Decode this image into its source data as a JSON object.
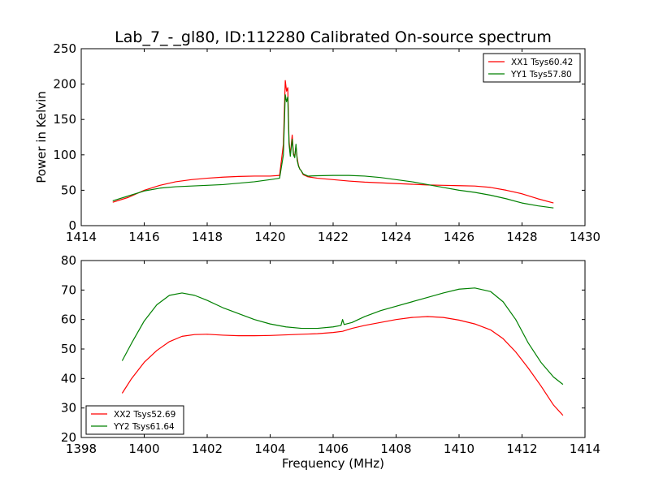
{
  "title": "Lab_7_-_gl80, ID:112280 Calibrated On-source spectrum",
  "chart_data": [
    {
      "type": "line",
      "ylabel": "Power in Kelvin",
      "xlabel": "",
      "xlim": [
        1414,
        1430
      ],
      "ylim": [
        0,
        250
      ],
      "xticks": [
        1414,
        1416,
        1418,
        1420,
        1422,
        1424,
        1426,
        1428,
        1430
      ],
      "yticks": [
        0,
        50,
        100,
        150,
        200,
        250
      ],
      "grid": false,
      "legend_position": "top-right",
      "series": [
        {
          "name": "XX1 Tsys60.42",
          "color": "#ff0000",
          "x": [
            1415,
            1415.5,
            1416,
            1416.5,
            1417,
            1417.5,
            1418,
            1418.5,
            1419,
            1419.5,
            1420,
            1420.3,
            1420.42,
            1420.48,
            1420.52,
            1420.56,
            1420.6,
            1420.64,
            1420.7,
            1420.74,
            1420.78,
            1420.82,
            1420.86,
            1420.9,
            1420.94,
            1420.98,
            1421.05,
            1421.2,
            1421.5,
            1422,
            1422.5,
            1423,
            1423.5,
            1424,
            1424.5,
            1425,
            1425.5,
            1426,
            1426.5,
            1427,
            1427.5,
            1428,
            1428.5,
            1429
          ],
          "y": [
            33,
            40,
            50,
            57,
            62,
            65,
            67,
            68.5,
            69.5,
            70,
            70,
            71,
            115,
            205,
            190,
            195,
            120,
            100,
            128,
            102,
            98,
            112,
            95,
            85,
            80,
            78,
            72,
            69,
            67,
            65,
            63,
            61.5,
            60.5,
            59.5,
            58.5,
            57.5,
            57,
            56.5,
            56,
            54,
            50,
            45,
            38,
            32
          ]
        },
        {
          "name": "YY1 Tsys57.80",
          "color": "#008000",
          "x": [
            1415,
            1415.5,
            1416,
            1416.5,
            1417,
            1417.5,
            1418,
            1418.5,
            1419,
            1419.5,
            1420,
            1420.3,
            1420.42,
            1420.48,
            1420.52,
            1420.56,
            1420.6,
            1420.64,
            1420.7,
            1420.74,
            1420.78,
            1420.82,
            1420.86,
            1420.9,
            1420.94,
            1420.98,
            1421.05,
            1421.2,
            1421.5,
            1422,
            1422.5,
            1423,
            1423.5,
            1424,
            1424.5,
            1425,
            1425.5,
            1426,
            1426.5,
            1427,
            1427.5,
            1428,
            1428.5,
            1429
          ],
          "y": [
            35,
            42,
            49,
            53,
            55,
            56,
            57,
            58,
            60,
            62,
            65,
            67,
            100,
            185,
            175,
            182,
            115,
            98,
            122,
            100,
            96,
            115,
            92,
            84,
            80,
            78,
            73,
            70,
            70.5,
            71,
            71,
            70,
            68,
            65,
            62,
            58,
            54,
            50,
            47,
            43,
            38,
            32,
            28,
            25
          ]
        }
      ]
    },
    {
      "type": "line",
      "ylabel": "",
      "xlabel": "Frequency (MHz)",
      "xlim": [
        1398,
        1414
      ],
      "ylim": [
        20,
        80
      ],
      "xticks": [
        1398,
        1400,
        1402,
        1404,
        1406,
        1408,
        1410,
        1412,
        1414
      ],
      "yticks": [
        20,
        30,
        40,
        50,
        60,
        70,
        80
      ],
      "grid": false,
      "legend_position": "bottom-left",
      "series": [
        {
          "name": "XX2 Tsys52.69",
          "color": "#ff0000",
          "x": [
            1399.3,
            1399.6,
            1400,
            1400.4,
            1400.8,
            1401.2,
            1401.6,
            1402,
            1402.5,
            1403,
            1403.5,
            1404,
            1404.5,
            1405,
            1405.5,
            1406,
            1406.3,
            1406.6,
            1407,
            1407.5,
            1408,
            1408.5,
            1409,
            1409.5,
            1410,
            1410.5,
            1411,
            1411.4,
            1411.8,
            1412.2,
            1412.6,
            1413,
            1413.3
          ],
          "y": [
            35,
            40,
            45.5,
            49.5,
            52.5,
            54.3,
            54.9,
            55,
            54.7,
            54.5,
            54.5,
            54.6,
            54.8,
            55,
            55.2,
            55.6,
            56,
            57,
            58,
            59,
            60,
            60.7,
            61,
            60.7,
            59.8,
            58.5,
            56.5,
            53.5,
            49,
            43.5,
            37.5,
            31,
            27.5
          ]
        },
        {
          "name": "YY2 Tsys61.64",
          "color": "#008000",
          "x": [
            1399.3,
            1399.6,
            1400,
            1400.4,
            1400.8,
            1401.2,
            1401.6,
            1402,
            1402.5,
            1403,
            1403.5,
            1404,
            1404.5,
            1405,
            1405.5,
            1406,
            1406.25,
            1406.3,
            1406.35,
            1406.6,
            1407,
            1407.5,
            1408,
            1408.5,
            1409,
            1409.5,
            1410,
            1410.5,
            1411,
            1411.4,
            1411.8,
            1412.2,
            1412.6,
            1413,
            1413.3
          ],
          "y": [
            46,
            52,
            59.5,
            65,
            68.2,
            69,
            68.2,
            66.5,
            64,
            62,
            60,
            58.5,
            57.5,
            57,
            57,
            57.5,
            58,
            60,
            58.3,
            59,
            61,
            63,
            64.5,
            66,
            67.5,
            69,
            70.3,
            70.7,
            69.5,
            66,
            60,
            52,
            45.5,
            40.5,
            38
          ]
        }
      ]
    }
  ]
}
